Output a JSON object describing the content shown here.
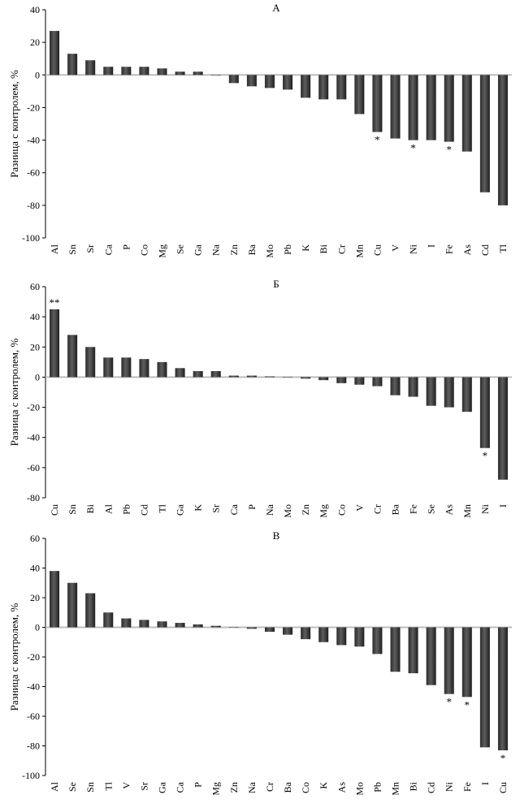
{
  "chart_data": [
    {
      "type": "bar",
      "title": "А",
      "ylabel": "Разница с контролем, %",
      "ylim": [
        -100,
        40
      ],
      "yticks": [
        40,
        20,
        0,
        -20,
        -40,
        -60,
        -80,
        -100
      ],
      "grid": false,
      "categories": [
        "Al",
        "Sn",
        "Sr",
        "Ca",
        "P",
        "Co",
        "Mg",
        "Se",
        "Ga",
        "Na",
        "Zn",
        "Ba",
        "Mo",
        "Pb",
        "K",
        "Bi",
        "Cr",
        "Mn",
        "Cu",
        "V",
        "Ni",
        "I",
        "Fe",
        "As",
        "Cd",
        "Tl"
      ],
      "values": [
        27,
        13,
        9,
        5,
        5,
        5,
        4,
        2,
        2,
        0,
        -5,
        -7,
        -8,
        -9,
        -14,
        -15,
        -15,
        -24,
        -35,
        -39,
        -40,
        -40,
        -41,
        -47,
        -72,
        -80
      ],
      "annotations": [
        "",
        "",
        "",
        "",
        "",
        "",
        "",
        "",
        "",
        "",
        "",
        "",
        "",
        "",
        "",
        "",
        "",
        "",
        "*",
        "",
        "*",
        "",
        "*",
        "",
        "",
        ""
      ]
    },
    {
      "type": "bar",
      "title": "Б",
      "ylabel": "Разница с контролем, %",
      "ylim": [
        -80,
        60
      ],
      "yticks": [
        60,
        40,
        20,
        0,
        -20,
        -40,
        -60,
        -80
      ],
      "grid": false,
      "categories": [
        "Cu",
        "Sn",
        "Bi",
        "Al",
        "Pb",
        "Cd",
        "Tl",
        "Ga",
        "K",
        "Sr",
        "Ca",
        "P",
        "Na",
        "Mo",
        "Zn",
        "Mg",
        "Co",
        "V",
        "Cr",
        "Ba",
        "Fe",
        "Se",
        "As",
        "Mn",
        "Ni",
        "I"
      ],
      "values": [
        45,
        28,
        20,
        13,
        13,
        12,
        10,
        6,
        4,
        4,
        1,
        1,
        0.5,
        0,
        -1,
        -2,
        -4,
        -5,
        -6,
        -12,
        -13,
        -19,
        -20,
        -23,
        -47,
        -68
      ],
      "annotations": [
        "**",
        "",
        "",
        "",
        "",
        "",
        "",
        "",
        "",
        "",
        "",
        "",
        "",
        "",
        "",
        "",
        "",
        "",
        "",
        "",
        "",
        "",
        "",
        "",
        "*",
        ""
      ]
    },
    {
      "type": "bar",
      "title": "В",
      "ylabel": "Разница с контролем, %",
      "ylim": [
        -100,
        60
      ],
      "yticks": [
        60,
        40,
        20,
        0,
        -20,
        -40,
        -60,
        -80,
        -100
      ],
      "grid": false,
      "categories": [
        "Al",
        "Se",
        "Sn",
        "Tl",
        "V",
        "Sr",
        "Ga",
        "Ca",
        "P",
        "Mg",
        "Zn",
        "Na",
        "Cr",
        "Ba",
        "Co",
        "K",
        "As",
        "Mo",
        "Pb",
        "Mn",
        "Bi",
        "Cd",
        "Ni",
        "Fe",
        "I",
        "Cu"
      ],
      "values": [
        38,
        30,
        23,
        10,
        6,
        5,
        4,
        3,
        2,
        1,
        0,
        -1,
        -3,
        -5,
        -8,
        -10,
        -12,
        -13,
        -18,
        -30,
        -31,
        -39,
        -45,
        -47,
        -81,
        -83
      ],
      "annotations": [
        "",
        "",
        "",
        "",
        "",
        "",
        "",
        "",
        "",
        "",
        "",
        "",
        "",
        "",
        "",
        "",
        "",
        "",
        "",
        "",
        "",
        "",
        "*",
        "*",
        "",
        "*"
      ]
    }
  ]
}
